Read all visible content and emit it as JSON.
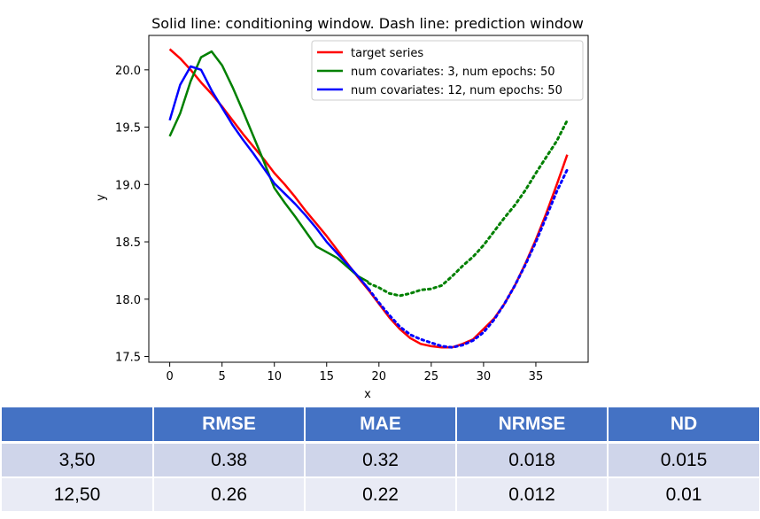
{
  "chart_data": {
    "type": "line",
    "title": "Solid line: conditioning window. Dash line: prediction window",
    "xlabel": "x",
    "ylabel": "y",
    "xlim": [
      -2,
      40
    ],
    "ylim": [
      17.45,
      20.3
    ],
    "xticks": [
      0,
      5,
      10,
      15,
      20,
      25,
      30,
      35
    ],
    "yticks": [
      17.5,
      18.0,
      18.5,
      19.0,
      19.5,
      20.0
    ],
    "ytick_labels": [
      "17.5",
      "18.0",
      "18.5",
      "19.0",
      "19.5",
      "20.0"
    ],
    "grid": false,
    "legend_position": "top-right",
    "series": [
      {
        "name": "target series",
        "color": "#ff0000",
        "style": "solid",
        "x": [
          0,
          1,
          2,
          3,
          4,
          5,
          6,
          7,
          8,
          9,
          10,
          11,
          12,
          13,
          14,
          15,
          16,
          17,
          18,
          19,
          20,
          21,
          22,
          23,
          24,
          25,
          26,
          27,
          28,
          29,
          30,
          31,
          32,
          33,
          34,
          35,
          36,
          37,
          38
        ],
        "y": [
          20.18,
          20.1,
          20.0,
          19.89,
          19.79,
          19.68,
          19.56,
          19.44,
          19.33,
          19.22,
          19.1,
          19.0,
          18.89,
          18.77,
          18.66,
          18.55,
          18.43,
          18.31,
          18.19,
          18.08,
          17.96,
          17.84,
          17.74,
          17.66,
          17.61,
          17.59,
          17.58,
          17.58,
          17.61,
          17.65,
          17.74,
          17.83,
          17.96,
          18.12,
          18.31,
          18.52,
          18.75,
          19.0,
          19.26
        ]
      },
      {
        "name": "num covariates: 3, num epochs: 50",
        "color": "#008000",
        "style": "solid",
        "x": [
          0,
          1,
          2,
          3,
          4,
          5,
          6,
          7,
          8,
          9,
          10,
          11,
          12,
          13,
          14,
          15,
          16,
          17,
          18,
          19
        ],
        "y": [
          19.42,
          19.62,
          19.9,
          20.11,
          20.16,
          20.04,
          19.85,
          19.64,
          19.42,
          19.2,
          18.97,
          18.84,
          18.72,
          18.59,
          18.46,
          18.41,
          18.36,
          18.28,
          18.2,
          18.15
        ]
      },
      {
        "name": "num covariates: 3, num epochs: 50 (prediction)",
        "color": "#008000",
        "style": "dotted",
        "x": [
          19,
          20,
          21,
          22,
          23,
          24,
          25,
          26,
          27,
          28,
          29,
          30,
          31,
          32,
          33,
          34,
          35,
          36,
          37,
          38
        ],
        "y": [
          18.14,
          18.1,
          18.05,
          18.03,
          18.05,
          18.08,
          18.09,
          18.12,
          18.2,
          18.29,
          18.37,
          18.47,
          18.59,
          18.71,
          18.82,
          18.95,
          19.1,
          19.24,
          19.38,
          19.56
        ]
      },
      {
        "name": "num covariates: 12, num epochs: 50",
        "color": "#0000ff",
        "style": "solid",
        "x": [
          0,
          1,
          2,
          3,
          4,
          5,
          6,
          7,
          8,
          9,
          10,
          11,
          12,
          13,
          14,
          15,
          16,
          17,
          18,
          19
        ],
        "y": [
          19.56,
          19.87,
          20.03,
          20.0,
          19.82,
          19.67,
          19.52,
          19.39,
          19.27,
          19.14,
          19.01,
          18.92,
          18.83,
          18.73,
          18.62,
          18.5,
          18.4,
          18.3,
          18.2,
          18.09
        ]
      },
      {
        "name": "num covariates: 12, num epochs: 50 (prediction)",
        "color": "#0000ff",
        "style": "dotted",
        "x": [
          19,
          20,
          21,
          22,
          23,
          24,
          25,
          26,
          27,
          28,
          29,
          30,
          31,
          32,
          33,
          34,
          35,
          36,
          37,
          38
        ],
        "y": [
          18.09,
          17.97,
          17.86,
          17.76,
          17.69,
          17.65,
          17.62,
          17.59,
          17.58,
          17.6,
          17.64,
          17.71,
          17.82,
          17.96,
          18.12,
          18.3,
          18.5,
          18.72,
          18.94,
          19.13
        ]
      }
    ],
    "legend": [
      {
        "label": "target series",
        "color": "#ff0000"
      },
      {
        "label": "num covariates: 3, num epochs: 50",
        "color": "#008000"
      },
      {
        "label": "num covariates: 12, num epochs: 50",
        "color": "#0000ff"
      }
    ]
  },
  "table": {
    "headers": [
      "",
      "RMSE",
      "MAE",
      "NRMSE",
      "ND"
    ],
    "rows": [
      [
        "3,50",
        "0.38",
        "0.32",
        "0.018",
        "0.015"
      ],
      [
        "12,50",
        "0.26",
        "0.22",
        "0.012",
        "0.01"
      ]
    ],
    "colors": {
      "header_bg": "#4472c4",
      "row_dark": "#cfd5ea",
      "row_light": "#e9ebf5"
    }
  }
}
